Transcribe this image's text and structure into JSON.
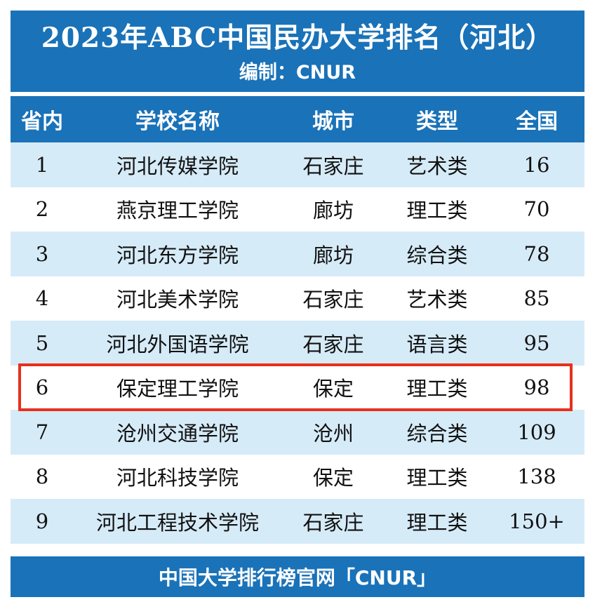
{
  "title": "2023年ABC中国民办大学排名（河北）",
  "subtitle": "编制：CNUR",
  "columns": [
    "省内",
    "学校名称",
    "城市",
    "类型",
    "全国"
  ],
  "rows": [
    {
      "rank": "1",
      "name": "河北传媒学院",
      "city": "石家庄",
      "type": "艺术类",
      "national": "16"
    },
    {
      "rank": "2",
      "name": "燕京理工学院",
      "city": "廊坊",
      "type": "理工类",
      "national": "70"
    },
    {
      "rank": "3",
      "name": "河北东方学院",
      "city": "廊坊",
      "type": "综合类",
      "national": "78"
    },
    {
      "rank": "4",
      "name": "河北美术学院",
      "city": "石家庄",
      "type": "艺术类",
      "national": "85"
    },
    {
      "rank": "5",
      "name": "河北外国语学院",
      "city": "石家庄",
      "type": "语言类",
      "national": "95"
    },
    {
      "rank": "6",
      "name": "保定理工学院",
      "city": "保定",
      "type": "理工类",
      "national": "98"
    },
    {
      "rank": "7",
      "name": "沧州交通学院",
      "city": "沧州",
      "type": "综合类",
      "national": "109"
    },
    {
      "rank": "8",
      "name": "河北科技学院",
      "city": "保定",
      "type": "理工类",
      "national": "138"
    },
    {
      "rank": "9",
      "name": "河北工程技术学院",
      "city": "石家庄",
      "type": "理工类",
      "national": "150+"
    }
  ],
  "highlighted_row": 5,
  "footer": "中国大学排行榜官网「CNUR」",
  "colors": {
    "header": "#1a72b8",
    "stripe": "#d6ebf8",
    "highlight": "#e8301c"
  }
}
